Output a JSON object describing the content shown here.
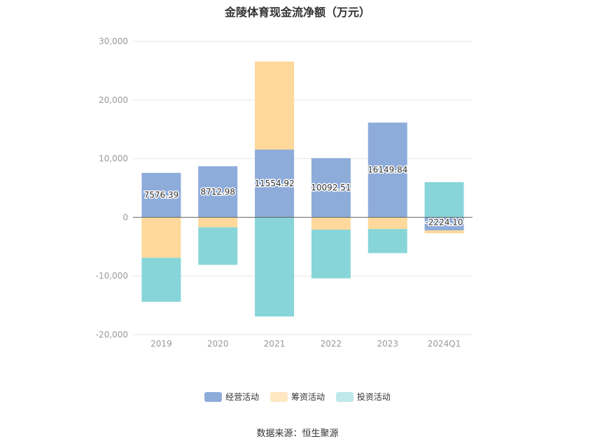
{
  "chart_data": {
    "type": "bar",
    "stacked": true,
    "title": "金陵体育现金流净额（万元）",
    "categories": [
      "2019",
      "2020",
      "2021",
      "2022",
      "2023",
      "2024Q1"
    ],
    "series": [
      {
        "name": "经营活动",
        "color": "#8eacda",
        "values": [
          7576.39,
          8712.98,
          11554.92,
          10092.51,
          16149.84,
          -2224.1
        ]
      },
      {
        "name": "筹资活动",
        "color": "#fed99b",
        "values": [
          -6900,
          -1700,
          15000,
          -2100,
          -2000,
          -500
        ]
      },
      {
        "name": "投资活动",
        "color": "#88d5d9",
        "values": [
          -7500,
          -6400,
          -16900,
          -8300,
          -4100,
          6000
        ]
      }
    ],
    "data_labels": [
      "7576.39",
      "8712.98",
      "11554.92",
      "10092.51",
      "16149.84",
      "-2224.10"
    ],
    "ylim": [
      -20000,
      30000
    ],
    "yticks": [
      30000,
      20000,
      10000,
      0,
      -10000,
      -20000
    ],
    "ytick_labels": [
      "30,000",
      "20,000",
      "10,000",
      "0",
      "-10,000",
      "-20,000"
    ],
    "grid": true,
    "legend_position": "bottom"
  },
  "source": "数据来源：恒生聚源"
}
